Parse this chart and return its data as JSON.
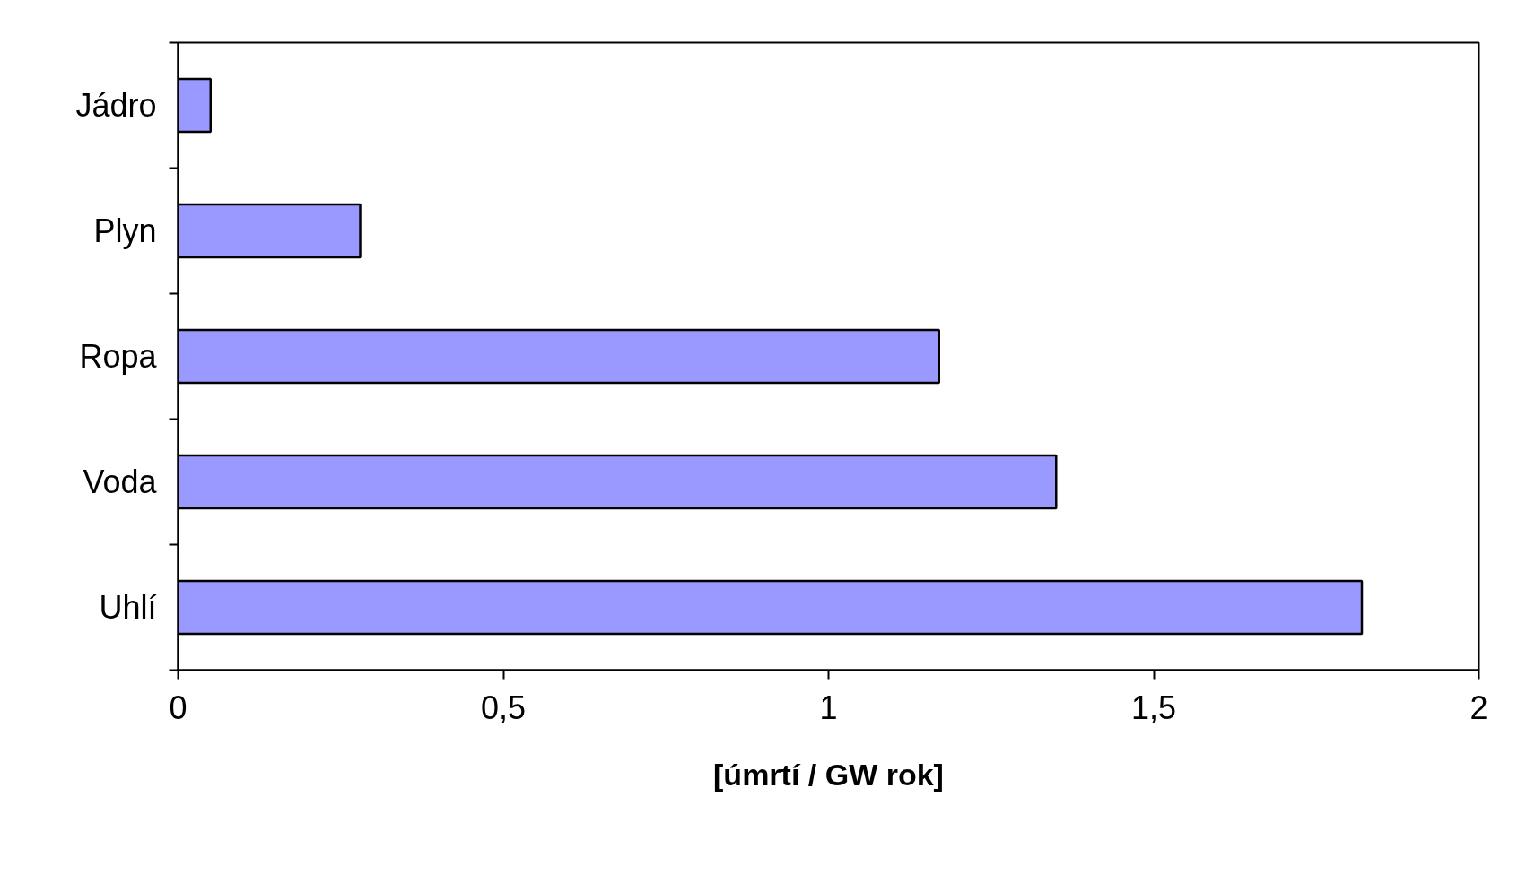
{
  "chart_data": {
    "type": "bar",
    "orientation": "horizontal",
    "xlabel": "[úmrtí / GW rok]",
    "categories": [
      "Jádro",
      "Plyn",
      "Ropa",
      "Voda",
      "Uhlí"
    ],
    "values": [
      0.05,
      0.28,
      1.17,
      1.35,
      1.82
    ],
    "color": "#9999ff",
    "xlim": [
      0,
      2
    ],
    "xticks": [
      0,
      {
        "value": 0.5,
        "label": "0,5"
      },
      1,
      {
        "value": 1.5,
        "label": "1,5"
      },
      2
    ],
    "grid": false
  }
}
